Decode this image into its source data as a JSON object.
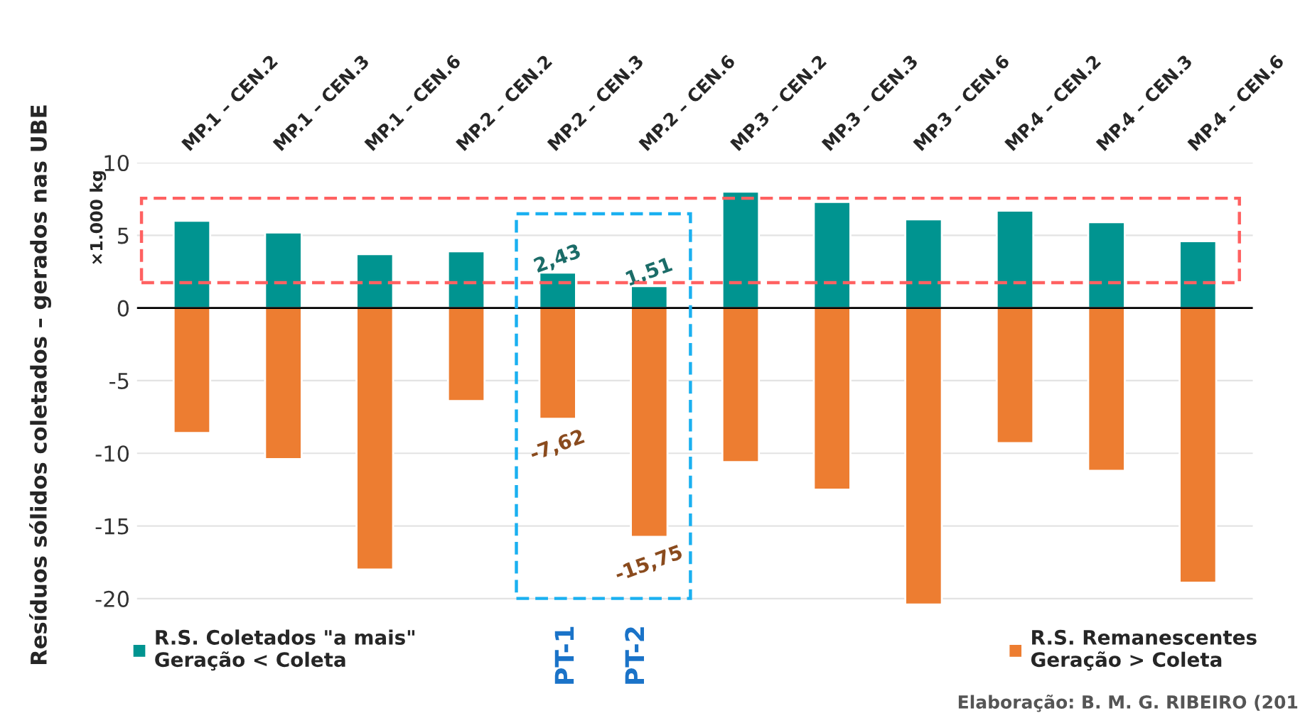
{
  "chart_data": {
    "type": "bar",
    "stacked": true,
    "ylabel": "Resíduos sólidos coletados – gerados nas UBE",
    "categories": [
      "MP.1 – CEN.2",
      "MP.1 – CEN.3",
      "MP.1 – CEN.6",
      "MP.2 – CEN.2",
      "MP.2 – CEN.3",
      "MP.2 – CEN.6",
      "MP.3 – CEN.2",
      "MP.3 – CEN.3",
      "MP.3 – CEN.6",
      "MP.4 – CEN.2",
      "MP.4 – CEN.3",
      "MP.4 – CEN.6"
    ],
    "series": [
      {
        "name": "R.S. Coletados \"a mais\"\nGeração < Coleta",
        "color": "#009490",
        "values": [
          6.0,
          5.2,
          3.7,
          3.9,
          2.43,
          1.51,
          8.0,
          7.3,
          6.1,
          6.7,
          5.9,
          4.6
        ],
        "value_labels": [
          null,
          null,
          null,
          null,
          "2,43",
          "1,51",
          null,
          null,
          null,
          null,
          null,
          null
        ]
      },
      {
        "name": "R.S. Remanescentes\nGeração > Coleta",
        "color": "#ed7d31",
        "values": [
          -8.6,
          -10.4,
          -18.0,
          -6.4,
          -7.62,
          -15.75,
          -10.6,
          -12.5,
          -20.4,
          -9.3,
          -11.2,
          -18.9
        ],
        "value_labels": [
          null,
          null,
          null,
          null,
          "-7,62",
          "-15,75",
          null,
          null,
          null,
          null,
          null,
          null
        ]
      }
    ],
    "ylim": [
      -20.6,
      10
    ],
    "yticks": [
      -20,
      -15,
      -10,
      -5,
      0,
      5,
      10
    ],
    "grid": "y",
    "legend": "bottom",
    "annotations": [
      "×1.000 kg",
      "PT-1",
      "PT-2",
      "Elaboração: B. M. G. RIBEIRO (201"
    ]
  }
}
